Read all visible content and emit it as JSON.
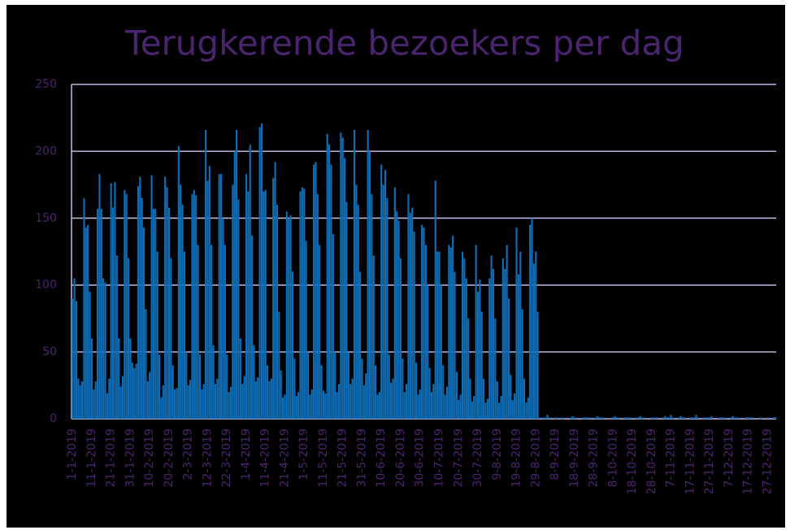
{
  "chart_data": {
    "type": "bar",
    "title": "Terugkerende bezoekers per dag",
    "color": "#0e6fb8",
    "ylim": [
      0,
      250
    ],
    "yticks": [
      0,
      50,
      100,
      150,
      200,
      250
    ],
    "grid": true,
    "categories": [
      "1-1-2019",
      null,
      null,
      null,
      null,
      null,
      null,
      null,
      null,
      null,
      "11-1-2019",
      null,
      null,
      null,
      null,
      null,
      null,
      null,
      null,
      null,
      "21-1-2019",
      null,
      null,
      null,
      null,
      null,
      null,
      null,
      null,
      null,
      "31-1-2019",
      null,
      null,
      null,
      null,
      null,
      null,
      null,
      null,
      null,
      "10-2-2019",
      null,
      null,
      null,
      null,
      null,
      null,
      null,
      null,
      null,
      "20-2-2019",
      null,
      null,
      null,
      null,
      null,
      null,
      null,
      null,
      null,
      "2-3-2019",
      null,
      null,
      null,
      null,
      null,
      null,
      null,
      null,
      null,
      "12-3-2019",
      null,
      null,
      null,
      null,
      null,
      null,
      null,
      null,
      null,
      "22-3-2019",
      null,
      null,
      null,
      null,
      null,
      null,
      null,
      null,
      null,
      "1-4-2019",
      null,
      null,
      null,
      null,
      null,
      null,
      null,
      null,
      null,
      "11-4-2019",
      null,
      null,
      null,
      null,
      null,
      null,
      null,
      null,
      null,
      "21-4-2019",
      null,
      null,
      null,
      null,
      null,
      null,
      null,
      null,
      null,
      "1-5-2019",
      null,
      null,
      null,
      null,
      null,
      null,
      null,
      null,
      null,
      "11-5-2019",
      null,
      null,
      null,
      null,
      null,
      null,
      null,
      null,
      null,
      "21-5-2019",
      null,
      null,
      null,
      null,
      null,
      null,
      null,
      null,
      null,
      "31-5-2019",
      null,
      null,
      null,
      null,
      null,
      null,
      null,
      null,
      null,
      "10-6-2019",
      null,
      null,
      null,
      null,
      null,
      null,
      null,
      null,
      null,
      "20-6-2019",
      null,
      null,
      null,
      null,
      null,
      null,
      null,
      null,
      null,
      "30-6-2019",
      null,
      null,
      null,
      null,
      null,
      null,
      null,
      null,
      null,
      "10-7-2019",
      null,
      null,
      null,
      null,
      null,
      null,
      null,
      null,
      null,
      "20-7-2019",
      null,
      null,
      null,
      null,
      null,
      null,
      null,
      null,
      null,
      "30-7-2019",
      null,
      null,
      null,
      null,
      null,
      null,
      null,
      null,
      null,
      "9-8-2019",
      null,
      null,
      null,
      null,
      null,
      null,
      null,
      null,
      null,
      "19-8-2019",
      null,
      null,
      null,
      null,
      null,
      null,
      null,
      null,
      null,
      "29-8-2019",
      null,
      null,
      null,
      null,
      null,
      null,
      null,
      null,
      null,
      "8-9-2019",
      null,
      null,
      null,
      null,
      null,
      null,
      null,
      null,
      null,
      "18-9-2019",
      null,
      null,
      null,
      null,
      null,
      null,
      null,
      null,
      null,
      "28-9-2019",
      null,
      null,
      null,
      null,
      null,
      null,
      null,
      null,
      null,
      "8-10-2019",
      null,
      null,
      null,
      null,
      null,
      null,
      null,
      null,
      null,
      "18-10-2019",
      null,
      null,
      null,
      null,
      null,
      null,
      null,
      null,
      null,
      "28-10-2019",
      null,
      null,
      null,
      null,
      null,
      null,
      null,
      null,
      null,
      "7-11-2019",
      null,
      null,
      null,
      null,
      null,
      null,
      null,
      null,
      null,
      "17-11-2019",
      null,
      null,
      null,
      null,
      null,
      null,
      null,
      null,
      null,
      "27-11-2019",
      null,
      null,
      null,
      null,
      null,
      null,
      null,
      null,
      null,
      "7-12-2019",
      null,
      null,
      null,
      null,
      null,
      null,
      null,
      null,
      null,
      "17-12-2019",
      null,
      null,
      null,
      null,
      null,
      null,
      null,
      null,
      null,
      "27-12-2019",
      null,
      null,
      null,
      null
    ],
    "values": [
      90,
      105,
      88,
      30,
      25,
      28,
      165,
      143,
      145,
      95,
      60,
      22,
      28,
      157,
      183,
      157,
      105,
      102,
      19,
      30,
      176,
      158,
      177,
      122,
      60,
      24,
      32,
      171,
      168,
      120,
      60,
      42,
      38,
      41,
      174,
      181,
      165,
      143,
      82,
      28,
      35,
      182,
      157,
      157,
      125,
      48,
      16,
      25,
      181,
      173,
      158,
      120,
      40,
      22,
      23,
      204,
      175,
      160,
      125,
      50,
      25,
      29,
      168,
      171,
      167,
      130,
      48,
      22,
      26,
      216,
      178,
      189,
      130,
      55,
      26,
      30,
      183,
      183,
      150,
      130,
      48,
      20,
      24,
      175,
      200,
      216,
      164,
      60,
      26,
      32,
      183,
      170,
      205,
      137,
      55,
      28,
      31,
      218,
      221,
      170,
      171,
      40,
      28,
      30,
      180,
      192,
      160,
      80,
      36,
      16,
      18,
      155,
      150,
      152,
      110,
      45,
      17,
      20,
      170,
      173,
      172,
      133,
      50,
      18,
      22,
      190,
      192,
      168,
      130,
      40,
      21,
      19,
      213,
      205,
      190,
      138,
      50,
      20,
      26,
      214,
      210,
      195,
      162,
      50,
      26,
      30,
      216,
      175,
      160,
      110,
      45,
      25,
      34,
      216,
      200,
      168,
      122,
      40,
      18,
      20,
      190,
      175,
      186,
      165,
      48,
      27,
      30,
      173,
      155,
      148,
      120,
      45,
      20,
      26,
      168,
      154,
      158,
      140,
      42,
      18,
      22,
      145,
      143,
      130,
      100,
      38,
      20,
      26,
      178,
      125,
      125,
      100,
      40,
      18,
      24,
      130,
      128,
      137,
      110,
      35,
      14,
      18,
      125,
      120,
      105,
      75,
      30,
      13,
      17,
      130,
      95,
      104,
      80,
      30,
      12,
      15,
      105,
      122,
      112,
      75,
      28,
      12,
      17,
      120,
      112,
      130,
      90,
      33,
      14,
      19,
      143,
      108,
      125,
      82,
      30,
      12,
      16,
      145,
      150,
      116,
      125,
      80,
      1,
      0,
      1,
      1,
      3,
      1,
      0,
      0,
      1,
      1,
      0,
      1,
      1,
      0,
      0,
      0,
      1,
      2,
      1,
      1,
      0,
      0,
      1,
      1,
      1,
      1,
      1,
      0,
      0,
      1,
      2,
      1,
      1,
      1,
      0,
      0,
      0,
      1,
      1,
      2,
      1,
      1,
      0,
      0,
      1,
      1,
      1,
      1,
      0,
      0,
      1,
      1,
      2,
      1,
      1,
      0,
      0,
      0,
      1,
      1,
      1,
      1,
      0,
      0,
      1,
      2,
      1,
      1,
      3,
      1,
      0,
      0,
      1,
      2,
      1,
      1,
      0,
      0,
      1,
      1,
      1,
      3,
      1,
      0,
      0,
      1,
      1,
      1,
      1,
      2,
      0,
      0,
      0,
      1,
      1,
      1,
      1,
      0,
      0,
      1,
      2,
      1,
      1,
      1,
      0,
      0,
      0,
      1,
      1,
      1,
      1,
      0,
      0,
      0,
      1,
      1,
      0,
      0,
      1,
      0,
      0,
      1,
      1
    ]
  }
}
